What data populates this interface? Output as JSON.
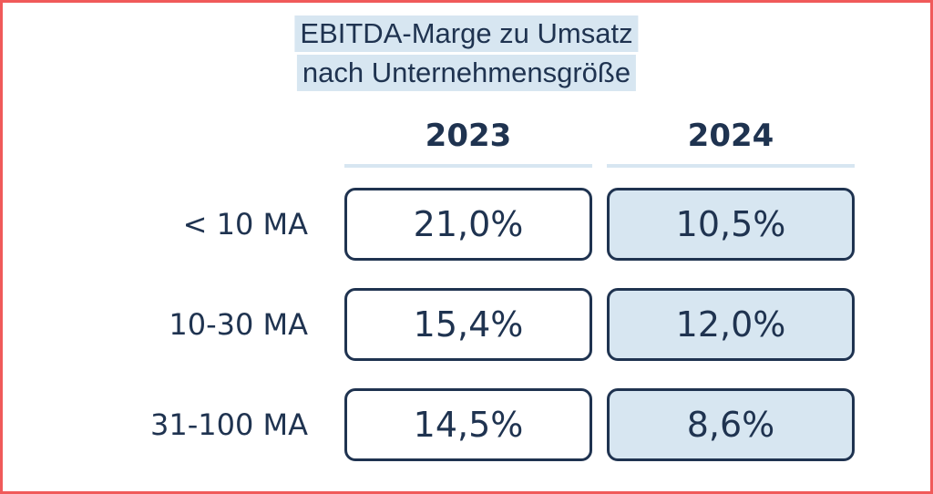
{
  "chart_data": {
    "type": "table",
    "title": [
      "EBITDA-Marge zu Umsatz",
      "nach Unternehmensgröße"
    ],
    "columns": [
      "2023",
      "2024"
    ],
    "rows": [
      {
        "label": "< 10 MA",
        "values": [
          "21,0%",
          "10,5%"
        ]
      },
      {
        "label": "10-30 MA",
        "values": [
          "15,4%",
          "12,0%"
        ]
      },
      {
        "label": "31-100 MA",
        "values": [
          "14,5%",
          "8,6%"
        ]
      }
    ],
    "numeric_values": {
      "2023": [
        21.0,
        15.4,
        14.5
      ],
      "2024": [
        10.5,
        12.0,
        8.6
      ]
    },
    "unit": "%"
  },
  "colors": {
    "text": "#1f3350",
    "highlight": "#d7e6f1",
    "border": "#f05a5a"
  }
}
